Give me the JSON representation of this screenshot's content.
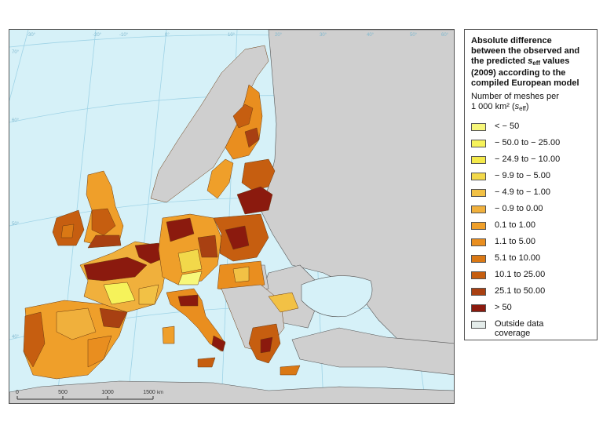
{
  "legend": {
    "title_line1": "Absolute difference",
    "title_line2": "between the observed and",
    "title_line3_pre": "the predicted ",
    "title_symbol": "s",
    "title_symbol_sub": "eff",
    "title_line3_post": " values",
    "title_line4": "(2009) according to the",
    "title_line5": "compiled European model",
    "subtitle_line1": "Number of meshes per",
    "subtitle_line2_pre": "1 000 km² (",
    "subtitle_symbol": "s",
    "subtitle_symbol_sub": "eff",
    "subtitle_line2_post": ")",
    "classes": [
      {
        "label": "< − 50",
        "color": "#f7f77a"
      },
      {
        "label": "− 50.0 to − 25.00",
        "color": "#f6f25a"
      },
      {
        "label": "− 24.9 to − 10.00",
        "color": "#f4e94a"
      },
      {
        "label": "− 9.9 to − 5.00",
        "color": "#f2d84a"
      },
      {
        "label": "− 4.9 to − 1.00",
        "color": "#f2c145"
      },
      {
        "label": "− 0.9 to 0.00",
        "color": "#f0b03c"
      },
      {
        "label": "0.1 to 1.00",
        "color": "#ef9f2a"
      },
      {
        "label": "1.1 to 5.00",
        "color": "#e98e1f"
      },
      {
        "label": "5.1 to 10.00",
        "color": "#da7814"
      },
      {
        "label": "10.1 to 25.00",
        "color": "#c65e10"
      },
      {
        "label": "25.1 to 50.00",
        "color": "#a84012"
      },
      {
        "label": "> 50",
        "color": "#8b1a0e"
      }
    ],
    "outside": {
      "label_line1": "Outside data",
      "label_line2": "coverage",
      "color": "#e4ecea"
    }
  },
  "map": {
    "sea_color": "#d6f1f8",
    "outside_land_color": "#cfcfcf",
    "graticule_labels": [
      "-30°",
      "-20°",
      "-10°",
      "0°",
      "10°",
      "20°",
      "30°",
      "40°",
      "50°",
      "60°",
      "70°",
      "60°",
      "50°",
      "40°"
    ],
    "scale_bar": {
      "ticks": [
        "0",
        "500",
        "1000",
        "1500"
      ],
      "unit": "km"
    }
  }
}
